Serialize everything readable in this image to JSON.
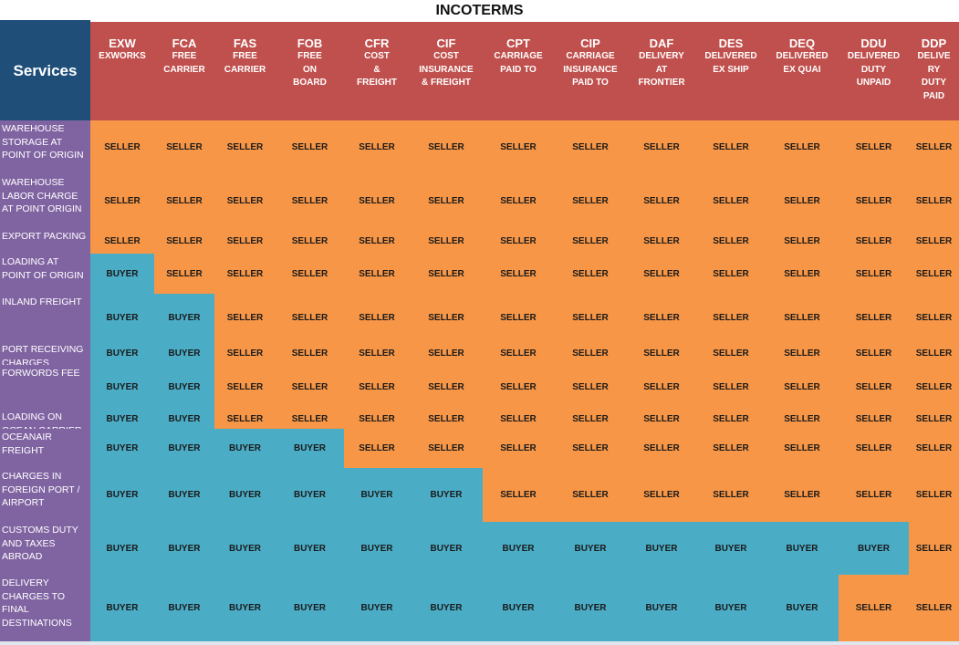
{
  "title": "INCOTERMS",
  "services_header": "Services",
  "columns": [
    {
      "code": "EXW",
      "name": "EXWORKS"
    },
    {
      "code": "FCA",
      "name": "FREE\nCARRIER"
    },
    {
      "code": "FAS",
      "name": "FREE\nCARRIER"
    },
    {
      "code": "FOB",
      "name": "FREE\nON\nBOARD"
    },
    {
      "code": "CFR",
      "name": "COST\n&\nFREIGHT"
    },
    {
      "code": "CIF",
      "name": "COST\nINSURANCE\n& FREIGHT"
    },
    {
      "code": "CPT",
      "name": "CARRIAGE\nPAID TO"
    },
    {
      "code": "CIP",
      "name": "CARRIAGE\nINSURANCE\nPAID TO"
    },
    {
      "code": "DAF",
      "name": "DELIVERY\nAT\nFRONTIER"
    },
    {
      "code": "DES",
      "name": "DELIVERED\nEX SHIP"
    },
    {
      "code": "DEQ",
      "name": "DELIVERED\nEX QUAI"
    },
    {
      "code": "DDU",
      "name": "DELIVERED\nDUTY\nUNPAID"
    },
    {
      "code": "DDP",
      "name": "DELIVE\nRY\nDUTY\nPAID"
    }
  ],
  "rows": [
    {
      "label": "WAREHOUSE\nSTORAGE AT\nPOINT OF ORIGIN",
      "values": [
        "SELLER",
        "SELLER",
        "SELLER",
        "SELLER",
        "SELLER",
        "SELLER",
        "SELLER",
        "SELLER",
        "SELLER",
        "SELLER",
        "SELLER",
        "SELLER",
        "SELLER"
      ]
    },
    {
      "label": "WAREHOUSE\nLABOR CHARGE\nAT POINT ORIGIN",
      "values": [
        "SELLER",
        "SELLER",
        "SELLER",
        "SELLER",
        "SELLER",
        "SELLER",
        "SELLER",
        "SELLER",
        "SELLER",
        "SELLER",
        "SELLER",
        "SELLER",
        "SELLER"
      ]
    },
    {
      "label": "EXPORT PACKING",
      "values": [
        "SELLER",
        "SELLER",
        "SELLER",
        "SELLER",
        "SELLER",
        "SELLER",
        "SELLER",
        "SELLER",
        "SELLER",
        "SELLER",
        "SELLER",
        "SELLER",
        "SELLER"
      ]
    },
    {
      "label": "LOADING AT\nPOINT OF ORIGIN",
      "values": [
        "BUYER",
        "SELLER",
        "SELLER",
        "SELLER",
        "SELLER",
        "SELLER",
        "SELLER",
        "SELLER",
        "SELLER",
        "SELLER",
        "SELLER",
        "SELLER",
        "SELLER"
      ]
    },
    {
      "label": "INLAND FREIGHT",
      "values": [
        "BUYER",
        "BUYER",
        "SELLER",
        "SELLER",
        "SELLER",
        "SELLER",
        "SELLER",
        "SELLER",
        "SELLER",
        "SELLER",
        "SELLER",
        "SELLER",
        "SELLER"
      ]
    },
    {
      "label": "PORT RECEIVING\nCHARGES",
      "values": [
        "BUYER",
        "BUYER",
        "SELLER",
        "SELLER",
        "SELLER",
        "SELLER",
        "SELLER",
        "SELLER",
        "SELLER",
        "SELLER",
        "SELLER",
        "SELLER",
        "SELLER"
      ]
    },
    {
      "label": "FORWORDS FEE",
      "values": [
        "BUYER",
        "BUYER",
        "SELLER",
        "SELLER",
        "SELLER",
        "SELLER",
        "SELLER",
        "SELLER",
        "SELLER",
        "SELLER",
        "SELLER",
        "SELLER",
        "SELLER"
      ]
    },
    {
      "label": "LOADING ON\nOCEAN CARRIER",
      "values": [
        "BUYER",
        "BUYER",
        "SELLER",
        "SELLER",
        "SELLER",
        "SELLER",
        "SELLER",
        "SELLER",
        "SELLER",
        "SELLER",
        "SELLER",
        "SELLER",
        "SELLER"
      ]
    },
    {
      "label": "OCEANAIR\nFREIGHT",
      "values": [
        "BUYER",
        "BUYER",
        "BUYER",
        "BUYER",
        "SELLER",
        "SELLER",
        "SELLER",
        "SELLER",
        "SELLER",
        "SELLER",
        "SELLER",
        "SELLER",
        "SELLER"
      ]
    },
    {
      "label": "CHARGES IN\nFOREIGN PORT /\nAIRPORT",
      "values": [
        "BUYER",
        "BUYER",
        "BUYER",
        "BUYER",
        "BUYER",
        "BUYER",
        "SELLER",
        "SELLER",
        "SELLER",
        "SELLER",
        "SELLER",
        "SELLER",
        "SELLER"
      ]
    },
    {
      "label": "CUSTOMS DUTY\nAND TAXES\nABROAD",
      "values": [
        "BUYER",
        "BUYER",
        "BUYER",
        "BUYER",
        "BUYER",
        "BUYER",
        "BUYER",
        "BUYER",
        "BUYER",
        "BUYER",
        "BUYER",
        "BUYER",
        "SELLER"
      ]
    },
    {
      "label": "DELIVERY\nCHARGES TO\nFINAL\nDESTINATIONS",
      "values": [
        "BUYER",
        "BUYER",
        "BUYER",
        "BUYER",
        "BUYER",
        "BUYER",
        "BUYER",
        "BUYER",
        "BUYER",
        "BUYER",
        "BUYER",
        "SELLER",
        "SELLER"
      ]
    }
  ],
  "colors": {
    "header_blue": "#1f4e79",
    "header_red": "#c0504d",
    "label_purple": "#8064a2",
    "seller_orange": "#f79646",
    "buyer_blue": "#4bacc6"
  }
}
